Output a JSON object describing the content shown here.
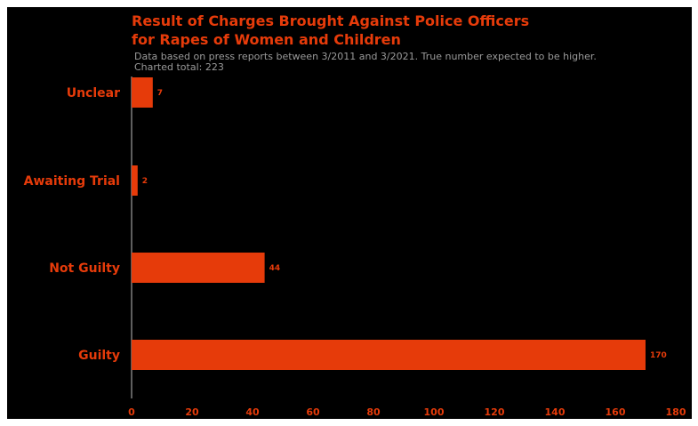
{
  "colors": {
    "background": "#000000",
    "accent": "#e63b0a",
    "subtitle": "#9a9a9a",
    "axis": "#bbbbbb"
  },
  "chart_data": {
    "type": "bar",
    "orientation": "horizontal",
    "title": "Result of Charges Brought Against Police Officers for Rapes of Women and Children",
    "title_lines": [
      "Result of Charges Brought Against Police Officers",
      "for Rapes of Women and Children"
    ],
    "subtitle_lines": [
      "Data based on press reports between 3/2011 and 3/2021. True number expected to be higher.",
      "Charted total: 223"
    ],
    "categories": [
      "Unclear",
      "Awaiting Trial",
      "Not Guilty",
      "Guilty"
    ],
    "values": [
      7,
      2,
      44,
      170
    ],
    "xlim": [
      0,
      180
    ],
    "xticks": [
      0,
      20,
      40,
      60,
      80,
      100,
      120,
      140,
      160,
      180
    ],
    "data_labels": true,
    "grid": false,
    "legend": "none"
  }
}
